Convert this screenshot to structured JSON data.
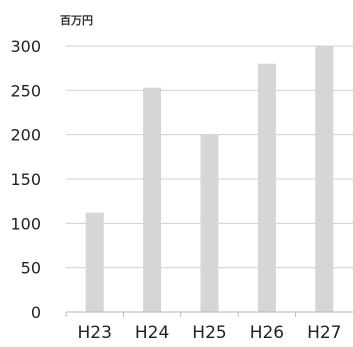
{
  "chart_data": {
    "type": "bar",
    "unit_label": "百万円",
    "categories": [
      "H23",
      "H24",
      "H25",
      "H26",
      "H27"
    ],
    "values": [
      112,
      253,
      200,
      280,
      300
    ],
    "yticks": [
      0,
      50,
      100,
      150,
      200,
      250,
      300
    ],
    "ylim": [
      0,
      300
    ],
    "grid": true,
    "legend": "none",
    "colors": {
      "bar": "#d6d6d6"
    }
  }
}
